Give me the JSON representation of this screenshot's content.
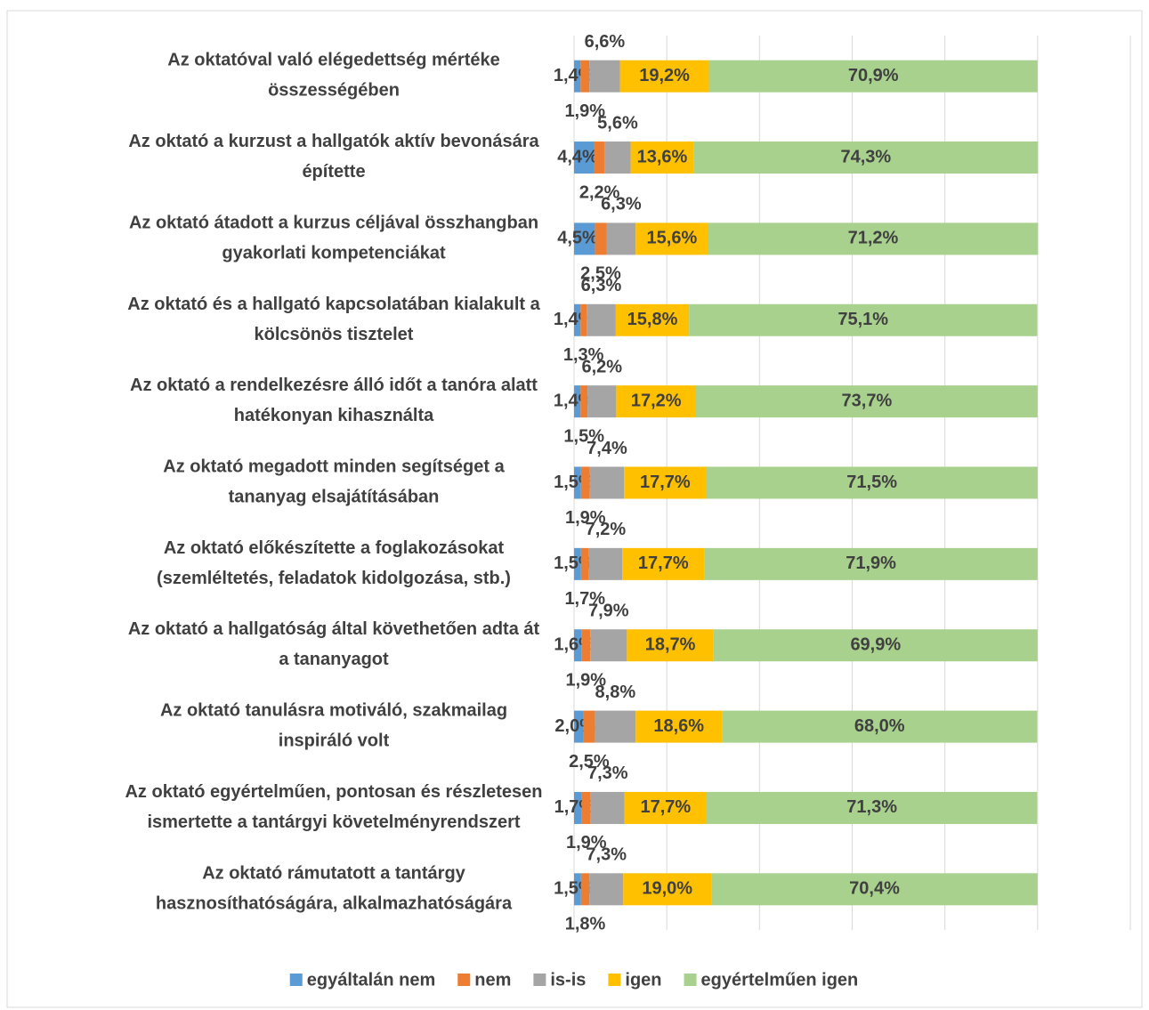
{
  "chart_data": {
    "type": "stacked-bar-horizontal",
    "categories": [
      "Az oktatóval való elégedettség mértéke összességében",
      "Az oktató a kurzust a hallgatók aktív bevonására építette",
      "Az oktató átadott a kurzus céljával összhangban gyakorlati kompetenciákat",
      "Az oktató és a hallgató kapcsolatában kialakult a kölcsönös tisztelet",
      "Az oktató a rendelkezésre álló időt a tanóra alatt hatékonyan kihasználta",
      "Az oktató megadott minden segítséget a tananyag elsajátításában",
      "Az oktató előkészítette a foglakozásokat (szemléltetés, feladatok kidolgozása, stb.)",
      "Az oktató a hallgatóság által követhetően adta át a tananyagot",
      "Az oktató tanulásra motiváló, szakmailag inspiráló volt",
      "Az oktató egyértelműen, pontosan és részletesen ismertette a tantárgyi követelményrendszert",
      "Az oktató rámutatott a tantárgy hasznosíthatóságára, alkalmazhatóságára"
    ],
    "series": [
      {
        "name": "egyáltalán nem",
        "color": "#5b9bd5",
        "values": [
          1.4,
          4.4,
          4.5,
          1.4,
          1.4,
          1.5,
          1.5,
          1.6,
          2.0,
          1.7,
          1.5
        ],
        "value_labels": [
          "1,4%",
          "4,4%",
          "4,5%",
          "1,4%",
          "1,4%",
          "1,5%",
          "1,5%",
          "1,6%",
          "2,0%",
          "1,7%",
          "1,5%"
        ]
      },
      {
        "name": "nem",
        "color": "#ed7d31",
        "values": [
          1.9,
          2.2,
          2.5,
          1.3,
          1.5,
          1.9,
          1.7,
          1.9,
          2.5,
          1.9,
          1.8
        ],
        "value_labels": [
          "1,9%",
          "2,2%",
          "2,5%",
          "1,3%",
          "1,5%",
          "1,9%",
          "1,7%",
          "1,9%",
          "2,5%",
          "1,9%",
          "1,8%"
        ]
      },
      {
        "name": "is-is",
        "color": "#a5a5a5",
        "values": [
          6.6,
          5.6,
          6.3,
          6.3,
          6.2,
          7.4,
          7.2,
          7.9,
          8.8,
          7.3,
          7.3
        ],
        "value_labels": [
          "6,6%",
          "5,6%",
          "6,3%",
          "6,3%",
          "6,2%",
          "7,4%",
          "7,2%",
          "7,9%",
          "8,8%",
          "7,3%",
          "7,3%"
        ]
      },
      {
        "name": "igen",
        "color": "#ffc000",
        "values": [
          19.2,
          13.6,
          15.6,
          15.8,
          17.2,
          17.7,
          17.7,
          18.7,
          18.6,
          17.7,
          19.0
        ],
        "value_labels": [
          "19,2%",
          "13,6%",
          "15,6%",
          "15,8%",
          "17,2%",
          "17,7%",
          "17,7%",
          "18,7%",
          "18,6%",
          "17,7%",
          "19,0%"
        ]
      },
      {
        "name": "egyértelműen igen",
        "color": "#a9d18e",
        "values": [
          70.9,
          74.3,
          71.2,
          75.1,
          73.7,
          71.5,
          71.9,
          69.9,
          68.0,
          71.3,
          70.4
        ],
        "value_labels": [
          "70,9%",
          "74,3%",
          "71,2%",
          "75,1%",
          "73,7%",
          "71,5%",
          "71,9%",
          "69,9%",
          "68,0%",
          "71,3%",
          "70,4%"
        ]
      }
    ],
    "xlim": [
      0,
      120
    ],
    "xticks": [
      0,
      20,
      40,
      60,
      80,
      100,
      120
    ],
    "grid": true,
    "legend": "bottom"
  }
}
